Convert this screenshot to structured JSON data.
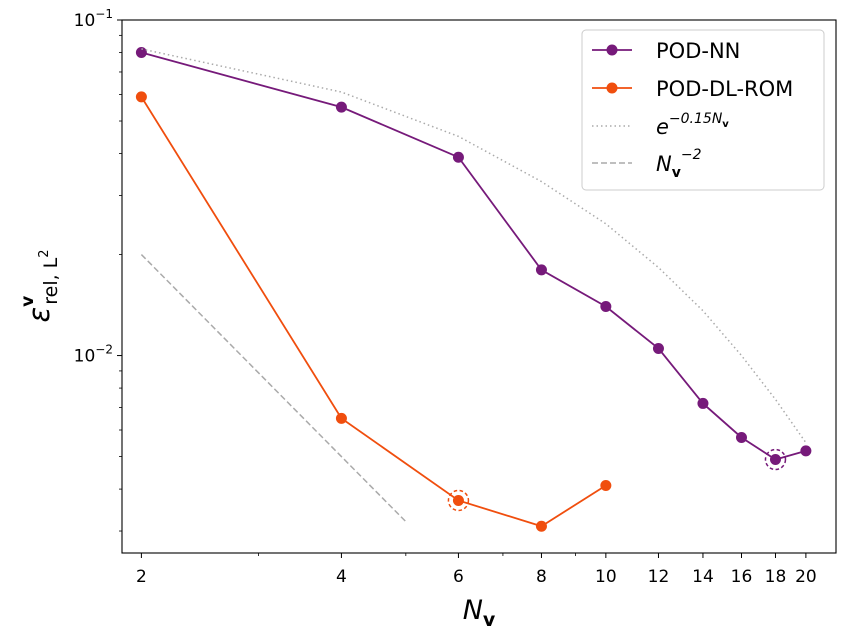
{
  "chart_data": {
    "type": "line",
    "xscale": "log",
    "yscale": "log",
    "xlim": [
      1.87,
      22.2
    ],
    "ylim": [
      0.00258,
      0.1
    ],
    "xticks": [
      2,
      4,
      6,
      8,
      10,
      12,
      14,
      16,
      18,
      20
    ],
    "yticks": [
      {
        "value": 0.01,
        "base": "10",
        "exp": "−2"
      },
      {
        "value": 0.1,
        "base": "10",
        "exp": "−1"
      }
    ],
    "xlabel": {
      "main": "N",
      "sub": "v"
    },
    "ylabel": {
      "main": "ε",
      "sup": "v",
      "sub": "rel, L",
      "subsup": "2"
    },
    "legend_position": "top-right",
    "series": [
      {
        "name": "POD-NN",
        "color": "#761a7a",
        "style": "solid",
        "marker": "circle",
        "x": [
          2,
          4,
          6,
          8,
          10,
          12,
          14,
          16,
          18,
          20
        ],
        "y": [
          0.08,
          0.055,
          0.039,
          0.018,
          0.014,
          0.0105,
          0.0072,
          0.0057,
          0.0049,
          0.0052
        ],
        "highlight_index": 8
      },
      {
        "name": "POD-DL-ROM",
        "color": "#f04e0e",
        "style": "solid",
        "marker": "circle",
        "x": [
          2,
          4,
          6,
          8,
          10
        ],
        "y": [
          0.059,
          0.0065,
          0.0037,
          0.0031,
          0.0041
        ],
        "highlight_index": 2
      },
      {
        "name": "exp",
        "label_base": "e",
        "label_exp": "−0.15N",
        "label_exp_sub": "v",
        "color": "#aaaaaa",
        "style": "dotted",
        "marker": "none",
        "x": [
          2,
          4,
          6,
          8,
          10,
          12,
          14,
          16,
          18,
          20
        ],
        "y": [
          0.082,
          0.061,
          0.045,
          0.033,
          0.0247,
          0.0183,
          0.0136,
          0.01,
          0.0074,
          0.0055
        ]
      },
      {
        "name": "power",
        "label_base": "N",
        "label_base_sub": "v",
        "label_exp": "−2",
        "color": "#aaaaaa",
        "style": "dashed",
        "marker": "none",
        "x": [
          2,
          5
        ],
        "y": [
          0.02,
          0.0032
        ]
      }
    ]
  }
}
